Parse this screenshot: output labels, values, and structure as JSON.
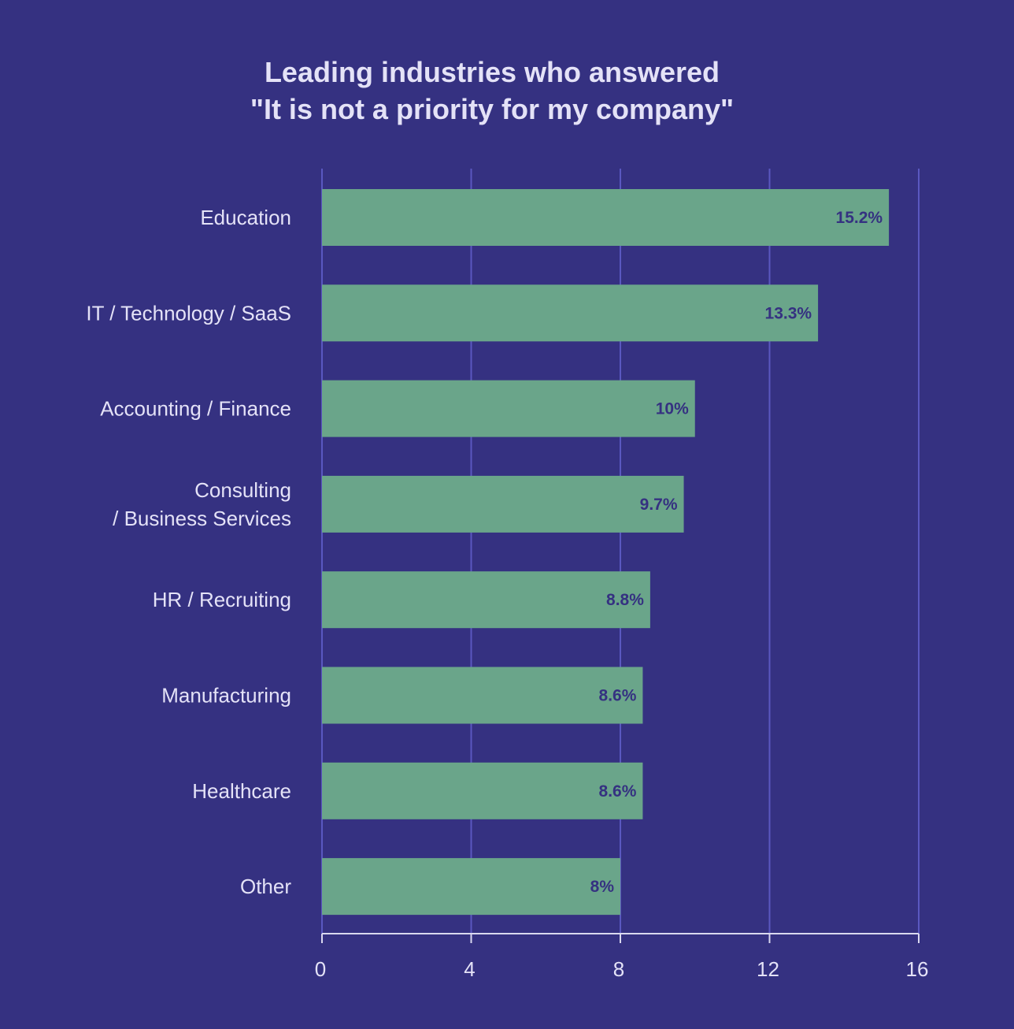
{
  "chart_data": {
    "type": "bar",
    "orientation": "horizontal",
    "title": "Leading industries who answered\n\"It is not a priority for my company\"",
    "categories": [
      "Education",
      "IT / Technology / SaaS",
      "Accounting / Finance",
      "Consulting\n/ Business Services",
      "HR / Recruiting",
      "Manufacturing",
      "Healthcare",
      "Other"
    ],
    "values": [
      15.2,
      13.3,
      10,
      9.7,
      8.8,
      8.6,
      8.6,
      8
    ],
    "data_labels": [
      "15.2%",
      "13.3%",
      "10%",
      "9.7%",
      "8.8%",
      "8.6%",
      "8.6%",
      "8%"
    ],
    "xlim": [
      0,
      16
    ],
    "xticks": [
      0,
      4,
      8,
      12,
      16
    ],
    "grid": true,
    "legend": "none",
    "colors": {
      "background": "#353181",
      "bar": "#6aa58a",
      "text": "#e4e2f7",
      "data_label": "#353181",
      "grid": "#5a58c0",
      "axis": "#d9d8ef"
    }
  }
}
